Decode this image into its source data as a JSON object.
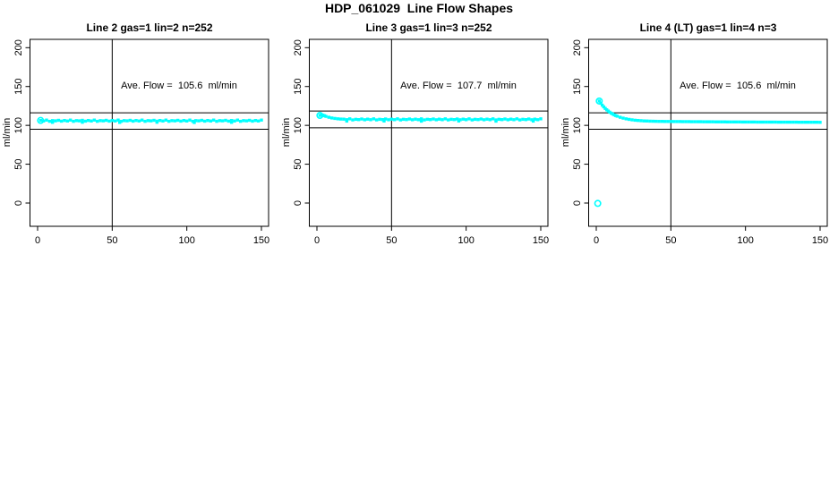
{
  "page": {
    "title": "HDP_061029  Line Flow Shapes"
  },
  "chart_data": [
    {
      "type": "scatter",
      "title": "Line 2 gas=1 lin=2 n=252",
      "n": 252,
      "xlabel": "",
      "ylabel": "ml/min",
      "xlim": [
        -6,
        156
      ],
      "ylim": [
        -30,
        211
      ],
      "x_ticks": [
        0,
        50,
        100,
        150
      ],
      "y_ticks": [
        0,
        50,
        100,
        150,
        200
      ],
      "grid": false,
      "legend": "none",
      "marker_color": "#00ffff",
      "line_color": "#000000",
      "ave_flow": 105.6,
      "annotation": "Ave. Flow =  105.6  ml/min",
      "annotation_xy": [
        95,
        150
      ],
      "hlines": [
        116.2,
        95.0
      ],
      "vlines": [
        50
      ],
      "open_markers": [
        [
          2,
          106.3
        ]
      ],
      "points": [
        [
          2,
          106.3
        ],
        [
          4,
          105.6
        ],
        [
          6,
          106.8
        ],
        [
          8,
          105.2
        ],
        [
          10,
          106.1
        ],
        [
          12,
          105.8
        ],
        [
          14,
          106.5
        ],
        [
          16,
          105.4
        ],
        [
          18,
          106.3
        ],
        [
          20,
          105.6
        ],
        [
          22,
          106.8
        ],
        [
          24,
          105.2
        ],
        [
          26,
          106.1
        ],
        [
          28,
          105.8
        ],
        [
          30,
          106.5
        ],
        [
          32,
          105.4
        ],
        [
          34,
          106.3
        ],
        [
          36,
          105.6
        ],
        [
          38,
          106.8
        ],
        [
          40,
          105.2
        ],
        [
          42,
          106.1
        ],
        [
          44,
          105.8
        ],
        [
          46,
          106.5
        ],
        [
          48,
          105.4
        ],
        [
          50,
          106.3
        ],
        [
          52,
          105.6
        ],
        [
          54,
          106.8
        ],
        [
          56,
          105.2
        ],
        [
          58,
          106.1
        ],
        [
          60,
          105.8
        ],
        [
          62,
          106.5
        ],
        [
          64,
          105.4
        ],
        [
          66,
          106.3
        ],
        [
          68,
          105.6
        ],
        [
          70,
          106.8
        ],
        [
          72,
          105.2
        ],
        [
          74,
          106.1
        ],
        [
          76,
          105.8
        ],
        [
          78,
          106.5
        ],
        [
          80,
          105.4
        ],
        [
          82,
          106.3
        ],
        [
          84,
          105.6
        ],
        [
          86,
          106.8
        ],
        [
          88,
          105.2
        ],
        [
          90,
          106.1
        ],
        [
          92,
          105.8
        ],
        [
          94,
          106.5
        ],
        [
          96,
          105.4
        ],
        [
          98,
          106.3
        ],
        [
          100,
          105.6
        ],
        [
          102,
          106.8
        ],
        [
          104,
          105.2
        ],
        [
          106,
          106.1
        ],
        [
          108,
          105.8
        ],
        [
          110,
          106.5
        ],
        [
          112,
          105.4
        ],
        [
          114,
          106.3
        ],
        [
          116,
          105.6
        ],
        [
          118,
          106.8
        ],
        [
          120,
          105.2
        ],
        [
          122,
          106.1
        ],
        [
          124,
          105.8
        ],
        [
          126,
          106.5
        ],
        [
          128,
          105.4
        ],
        [
          130,
          106.3
        ],
        [
          132,
          105.6
        ],
        [
          134,
          106.8
        ],
        [
          136,
          105.2
        ],
        [
          138,
          106.1
        ],
        [
          140,
          105.8
        ],
        [
          142,
          106.5
        ],
        [
          144,
          105.4
        ],
        [
          146,
          106.3
        ],
        [
          148,
          105.6
        ],
        [
          150,
          106.8
        ],
        [
          10,
          103.9
        ],
        [
          30,
          104.0
        ],
        [
          55,
          103.8
        ],
        [
          80,
          104.0
        ],
        [
          105,
          103.7
        ],
        [
          130,
          103.9
        ]
      ]
    },
    {
      "type": "scatter",
      "title": "Line 3 gas=1 lin=3 n=252",
      "n": 252,
      "xlabel": "",
      "ylabel": "ml/min",
      "xlim": [
        -6,
        156
      ],
      "ylim": [
        -30,
        211
      ],
      "x_ticks": [
        0,
        50,
        100,
        150
      ],
      "y_ticks": [
        0,
        50,
        100,
        150,
        200
      ],
      "grid": false,
      "legend": "none",
      "marker_color": "#00ffff",
      "line_color": "#000000",
      "ave_flow": 107.7,
      "annotation": "Ave. Flow =  107.7  ml/min",
      "annotation_xy": [
        95,
        150
      ],
      "hlines": [
        118.5,
        96.9
      ],
      "vlines": [
        50
      ],
      "open_markers": [
        [
          2,
          112.8
        ]
      ],
      "points": [
        [
          2,
          112.8
        ],
        [
          3,
          113.4
        ],
        [
          4,
          113.1
        ],
        [
          5,
          112.4
        ],
        [
          6,
          111.6
        ],
        [
          8,
          110.4
        ],
        [
          10,
          109.5
        ],
        [
          12,
          108.9
        ],
        [
          14,
          108.4
        ],
        [
          16,
          108.1
        ],
        [
          18,
          108.0
        ],
        [
          20,
          107.3
        ],
        [
          22,
          108.4
        ],
        [
          24,
          107.0
        ],
        [
          26,
          107.8
        ],
        [
          28,
          107.4
        ],
        [
          30,
          108.2
        ],
        [
          32,
          107.2
        ],
        [
          34,
          108.0
        ],
        [
          36,
          107.3
        ],
        [
          38,
          108.4
        ],
        [
          40,
          107.0
        ],
        [
          42,
          107.8
        ],
        [
          44,
          107.4
        ],
        [
          46,
          108.2
        ],
        [
          48,
          107.2
        ],
        [
          50,
          108.0
        ],
        [
          52,
          107.3
        ],
        [
          54,
          108.4
        ],
        [
          56,
          107.0
        ],
        [
          58,
          107.8
        ],
        [
          60,
          107.4
        ],
        [
          62,
          108.2
        ],
        [
          64,
          107.2
        ],
        [
          66,
          108.0
        ],
        [
          68,
          107.3
        ],
        [
          70,
          108.4
        ],
        [
          72,
          107.0
        ],
        [
          74,
          107.8
        ],
        [
          76,
          107.4
        ],
        [
          78,
          108.2
        ],
        [
          80,
          107.2
        ],
        [
          82,
          108.0
        ],
        [
          84,
          107.3
        ],
        [
          86,
          108.4
        ],
        [
          88,
          107.0
        ],
        [
          90,
          107.8
        ],
        [
          92,
          107.4
        ],
        [
          94,
          108.2
        ],
        [
          96,
          107.2
        ],
        [
          98,
          108.0
        ],
        [
          100,
          107.3
        ],
        [
          102,
          108.4
        ],
        [
          104,
          107.0
        ],
        [
          106,
          107.8
        ],
        [
          108,
          107.4
        ],
        [
          110,
          108.2
        ],
        [
          112,
          107.2
        ],
        [
          114,
          108.0
        ],
        [
          116,
          107.3
        ],
        [
          118,
          108.4
        ],
        [
          120,
          107.0
        ],
        [
          122,
          107.8
        ],
        [
          124,
          107.4
        ],
        [
          126,
          108.2
        ],
        [
          128,
          107.2
        ],
        [
          130,
          108.0
        ],
        [
          132,
          107.3
        ],
        [
          134,
          108.4
        ],
        [
          136,
          107.0
        ],
        [
          138,
          107.8
        ],
        [
          140,
          107.4
        ],
        [
          142,
          108.2
        ],
        [
          144,
          107.2
        ],
        [
          146,
          108.0
        ],
        [
          148,
          107.3
        ],
        [
          150,
          108.4
        ],
        [
          20,
          105.5
        ],
        [
          45,
          105.6
        ],
        [
          70,
          105.4
        ],
        [
          95,
          105.6
        ],
        [
          120,
          105.4
        ],
        [
          145,
          105.5
        ]
      ]
    },
    {
      "type": "scatter",
      "title": "Line 4 (LT) gas=1 lin=4 n=3",
      "n": 3,
      "xlabel": "",
      "ylabel": "ml/min",
      "xlim": [
        -6,
        156
      ],
      "ylim": [
        -30,
        211
      ],
      "x_ticks": [
        0,
        50,
        100,
        150
      ],
      "y_ticks": [
        0,
        50,
        100,
        150,
        200
      ],
      "grid": false,
      "legend": "none",
      "marker_color": "#00ffff",
      "line_color": "#000000",
      "ave_flow": 105.6,
      "annotation": "Ave. Flow =  105.6  ml/min",
      "annotation_xy": [
        95,
        150
      ],
      "hlines": [
        116.2,
        95.0
      ],
      "vlines": [
        50
      ],
      "open_markers": [
        [
          2,
          131.3
        ],
        [
          1,
          -0.5
        ]
      ],
      "points": [
        [
          2,
          131.3
        ],
        [
          3,
          128.5
        ],
        [
          4,
          126.0
        ],
        [
          5,
          123.8
        ],
        [
          6,
          121.8
        ],
        [
          7,
          120.0
        ],
        [
          8,
          118.4
        ],
        [
          9,
          117.0
        ],
        [
          10,
          115.7
        ],
        [
          11,
          114.6
        ],
        [
          12,
          113.5
        ],
        [
          13,
          112.6
        ],
        [
          14,
          111.8
        ],
        [
          16,
          110.4
        ],
        [
          18,
          109.3
        ],
        [
          20,
          108.4
        ],
        [
          22,
          107.7
        ],
        [
          24,
          107.1
        ],
        [
          26,
          106.6
        ],
        [
          28,
          106.3
        ],
        [
          30,
          106.0
        ],
        [
          32,
          105.7
        ],
        [
          34,
          105.6
        ],
        [
          36,
          105.4
        ],
        [
          38,
          105.3
        ],
        [
          40,
          105.2
        ],
        [
          42,
          105.1
        ],
        [
          44,
          105.1
        ],
        [
          46,
          105.0
        ],
        [
          48,
          105.0
        ],
        [
          50,
          105.0
        ],
        [
          52,
          104.9
        ],
        [
          54,
          104.9
        ],
        [
          56,
          104.9
        ],
        [
          58,
          104.8
        ],
        [
          60,
          104.8
        ],
        [
          62,
          104.8
        ],
        [
          64,
          104.7
        ],
        [
          66,
          104.7
        ],
        [
          68,
          104.7
        ],
        [
          70,
          104.7
        ],
        [
          72,
          104.6
        ],
        [
          74,
          104.6
        ],
        [
          76,
          104.6
        ],
        [
          78,
          104.6
        ],
        [
          80,
          104.5
        ],
        [
          82,
          104.5
        ],
        [
          84,
          104.5
        ],
        [
          86,
          104.5
        ],
        [
          88,
          104.4
        ],
        [
          90,
          104.4
        ],
        [
          92,
          104.4
        ],
        [
          94,
          104.4
        ],
        [
          96,
          104.4
        ],
        [
          98,
          104.3
        ],
        [
          100,
          104.3
        ],
        [
          102,
          104.3
        ],
        [
          104,
          104.3
        ],
        [
          106,
          104.3
        ],
        [
          108,
          104.2
        ],
        [
          110,
          104.2
        ],
        [
          112,
          104.2
        ],
        [
          114,
          104.2
        ],
        [
          116,
          104.2
        ],
        [
          118,
          104.2
        ],
        [
          120,
          104.2
        ],
        [
          122,
          104.1
        ],
        [
          124,
          104.1
        ],
        [
          126,
          104.1
        ],
        [
          128,
          104.1
        ],
        [
          130,
          104.1
        ],
        [
          132,
          104.1
        ],
        [
          134,
          104.1
        ],
        [
          136,
          104.0
        ],
        [
          138,
          104.0
        ],
        [
          140,
          104.0
        ],
        [
          142,
          104.0
        ],
        [
          144,
          104.0
        ],
        [
          146,
          104.0
        ],
        [
          148,
          104.0
        ],
        [
          150,
          103.9
        ]
      ]
    }
  ]
}
